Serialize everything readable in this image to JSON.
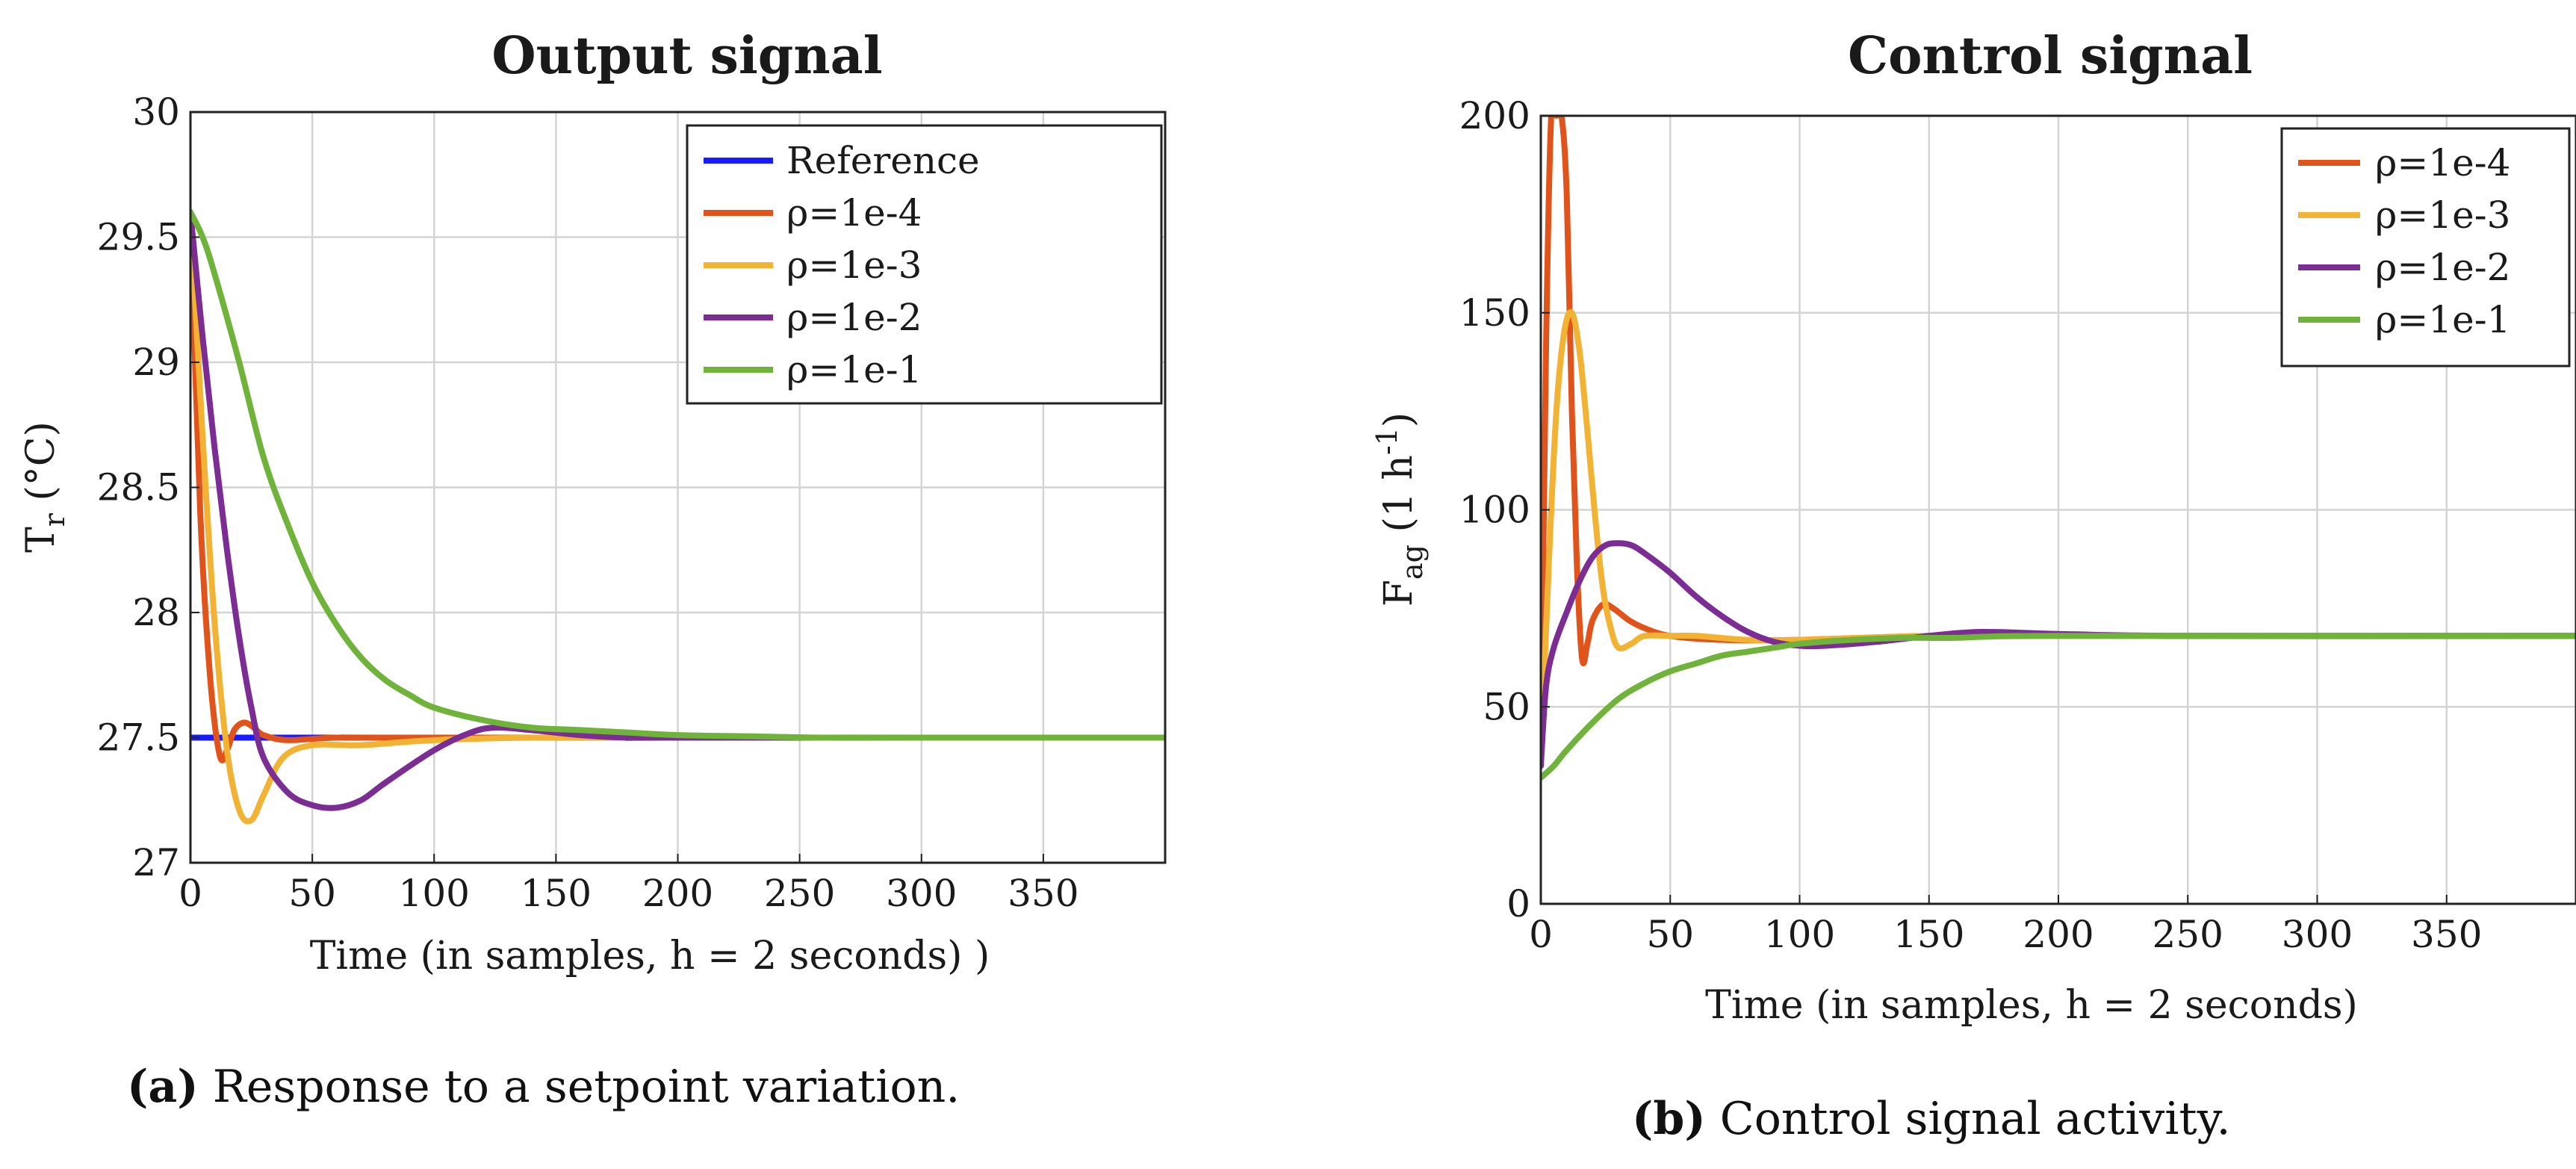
{
  "colors": {
    "reference": "#1a1aff",
    "rho_1e4": "#e0541c",
    "rho_1e3": "#f2b233",
    "rho_1e2": "#7b2d93",
    "rho_1e1": "#6fb33a",
    "grid": "#d4d4d4",
    "axis": "#222222"
  },
  "captions": {
    "a_tag": "(a)",
    "a_text": " Response to a setpoint variation.",
    "b_tag": "(b)",
    "b_text": " Control signal activity."
  },
  "chart_data": [
    {
      "type": "line",
      "title": "Output signal",
      "xlabel": "Time (in samples, h = 2 seconds)  )",
      "ylabel": "Tr (°C)",
      "xlim": [
        0,
        400
      ],
      "ylim": [
        27,
        30
      ],
      "xticks": [
        0,
        50,
        100,
        150,
        200,
        250,
        300,
        350
      ],
      "yticks": [
        27,
        27.5,
        28,
        28.5,
        29,
        29.5,
        30
      ],
      "ytick_labels": [
        "27",
        "27.5",
        "28",
        "28.5",
        "29",
        "29.5",
        "30"
      ],
      "legend_position": "top-right",
      "series": [
        {
          "name": "Reference",
          "color_key": "reference",
          "x": [
            0,
            400
          ],
          "y": [
            27.5,
            27.5
          ]
        },
        {
          "name": "ρ=1e-4",
          "color_key": "rho_1e4",
          "x": [
            0,
            4,
            8,
            12,
            15,
            18,
            22,
            26,
            30,
            40,
            60,
            100,
            400
          ],
          "y": [
            29.6,
            28.4,
            27.75,
            27.43,
            27.45,
            27.53,
            27.56,
            27.54,
            27.51,
            27.49,
            27.5,
            27.5,
            27.5
          ]
        },
        {
          "name": "ρ=1e-3",
          "color_key": "rho_1e3",
          "x": [
            0,
            5,
            10,
            15,
            20,
            25,
            30,
            38,
            50,
            70,
            100,
            140,
            200,
            400
          ],
          "y": [
            29.6,
            28.7,
            27.95,
            27.45,
            27.21,
            27.17,
            27.27,
            27.42,
            27.47,
            27.47,
            27.49,
            27.5,
            27.5,
            27.5
          ]
        },
        {
          "name": "ρ=1e-2",
          "color_key": "rho_1e2",
          "x": [
            0,
            5,
            10,
            15,
            20,
            25,
            30,
            40,
            50,
            60,
            70,
            80,
            100,
            115,
            125,
            140,
            160,
            180,
            200,
            400
          ],
          "y": [
            29.6,
            29.1,
            28.65,
            28.25,
            27.9,
            27.62,
            27.42,
            27.28,
            27.23,
            27.22,
            27.25,
            27.32,
            27.45,
            27.52,
            27.54,
            27.53,
            27.51,
            27.5,
            27.5,
            27.5
          ]
        },
        {
          "name": "ρ=1e-1",
          "color_key": "rho_1e1",
          "x": [
            0,
            5,
            10,
            20,
            30,
            40,
            50,
            60,
            70,
            80,
            90,
            100,
            120,
            140,
            160,
            180,
            200,
            230,
            260,
            300,
            400
          ],
          "y": [
            29.6,
            29.5,
            29.35,
            29.0,
            28.62,
            28.35,
            28.12,
            27.95,
            27.82,
            27.73,
            27.67,
            27.62,
            27.57,
            27.54,
            27.53,
            27.52,
            27.51,
            27.505,
            27.5,
            27.5,
            27.5
          ]
        }
      ]
    },
    {
      "type": "line",
      "title": "Control signal",
      "xlabel": "Time (in samples, h = 2 seconds)",
      "ylabel": "Fag (1 h-1)",
      "xlim": [
        0,
        400
      ],
      "ylim": [
        0,
        200
      ],
      "xticks": [
        0,
        50,
        100,
        150,
        200,
        250,
        300,
        350
      ],
      "yticks": [
        0,
        50,
        100,
        150,
        200
      ],
      "ytick_labels": [
        "0",
        "50",
        "100",
        "150",
        "200"
      ],
      "legend_position": "top-right",
      "series": [
        {
          "name": "ρ=1e-4",
          "color_key": "rho_1e4",
          "x": [
            0,
            2,
            4,
            6,
            8,
            10,
            12,
            14,
            16,
            18,
            20,
            24,
            28,
            34,
            40,
            50,
            70,
            100,
            150,
            200,
            400
          ],
          "y": [
            35,
            140,
            200,
            200,
            200,
            180,
            125,
            85,
            62,
            66,
            72,
            76,
            75,
            72,
            70,
            68,
            67,
            67,
            68,
            68,
            68
          ]
        },
        {
          "name": "ρ=1e-3",
          "color_key": "rho_1e3",
          "x": [
            0,
            3,
            6,
            9,
            12,
            15,
            18,
            21,
            24,
            27,
            30,
            35,
            40,
            50,
            60,
            80,
            100,
            150,
            200,
            400
          ],
          "y": [
            35,
            85,
            125,
            145,
            150,
            140,
            120,
            98,
            80,
            70,
            65,
            66,
            68,
            68,
            68,
            67,
            67,
            68,
            68,
            68
          ]
        },
        {
          "name": "ρ=1e-2",
          "color_key": "rho_1e2",
          "x": [
            0,
            2,
            5,
            10,
            15,
            20,
            25,
            30,
            35,
            40,
            50,
            60,
            70,
            80,
            90,
            100,
            110,
            130,
            150,
            170,
            200,
            250,
            400
          ],
          "y": [
            35,
            55,
            65,
            74,
            82,
            88,
            91,
            91.5,
            91,
            89,
            84,
            78,
            73,
            69,
            66.5,
            65.5,
            65.5,
            66.5,
            68,
            69,
            68.5,
            68,
            68
          ]
        },
        {
          "name": "ρ=1e-1",
          "color_key": "rho_1e1",
          "x": [
            0,
            5,
            10,
            20,
            30,
            40,
            50,
            60,
            70,
            80,
            90,
            100,
            120,
            140,
            160,
            200,
            400
          ],
          "y": [
            32,
            35,
            39,
            46,
            52,
            56,
            59,
            61,
            63,
            64,
            65,
            66,
            67,
            67.5,
            67.5,
            68,
            68
          ]
        }
      ]
    }
  ]
}
